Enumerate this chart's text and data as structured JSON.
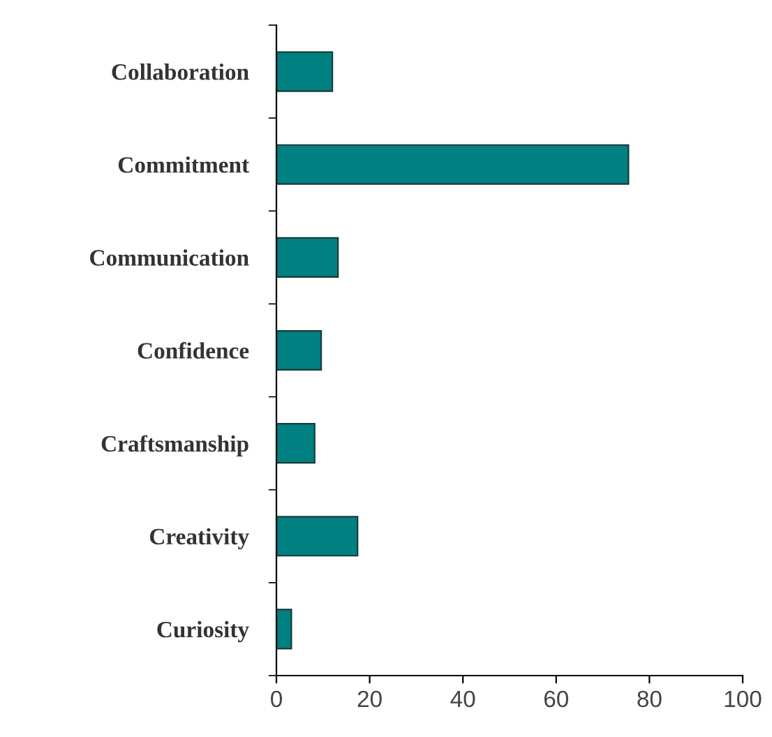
{
  "chart_data": {
    "type": "bar",
    "orientation": "horizontal",
    "categories": [
      "Collaboration",
      "Commitment",
      "Communication",
      "Confidence",
      "Craftsmanship",
      "Creativity",
      "Curiosity"
    ],
    "values": [
      12,
      75.5,
      13.2,
      9.6,
      8.2,
      17.4,
      3.2
    ],
    "color": "#008080",
    "xlim": [
      0,
      100
    ],
    "xticks": [
      0,
      20,
      40,
      60,
      80,
      100
    ],
    "grid": false
  }
}
